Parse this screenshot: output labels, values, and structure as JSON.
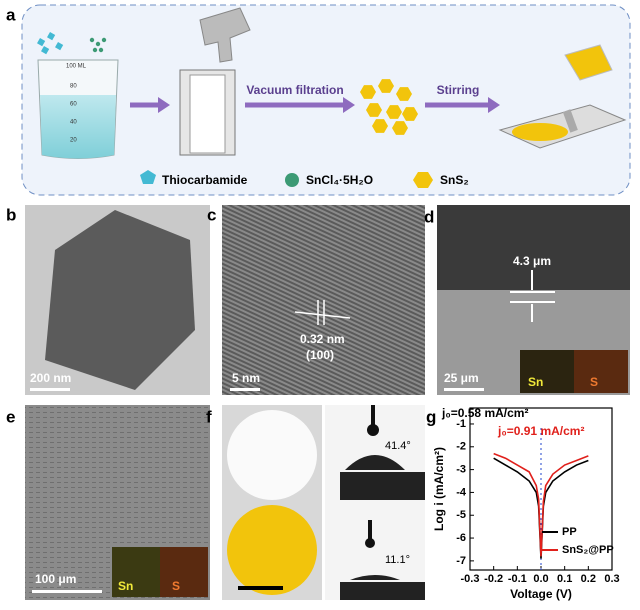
{
  "panel_a": {
    "label": "a",
    "beaker_marks": [
      "100 ML",
      "80",
      "60",
      "40",
      "20"
    ],
    "step1": "Vacuum filtration",
    "step2": "Stirring",
    "legend": [
      "Thiocarbamide",
      "SnCl₄·5H₂O",
      "SnS₂"
    ]
  },
  "panel_b": {
    "label": "b",
    "scale": "200 nm"
  },
  "panel_c": {
    "label": "c",
    "spacing": "0.32 nm",
    "plane": "(100)",
    "scale": "5 nm"
  },
  "panel_d": {
    "label": "d",
    "thickness": "4.3 μm",
    "scale": "25 μm",
    "elements": [
      "Sn",
      "S"
    ]
  },
  "panel_e": {
    "label": "e",
    "scale": "100 μm",
    "elements": [
      "Sn",
      "S"
    ]
  },
  "panel_f": {
    "label": "f",
    "angles": [
      "41.4°",
      "11.1°"
    ]
  },
  "chart_data": {
    "type": "line",
    "label": "g",
    "xlabel": "Voltage (V)",
    "ylabel": "Log i (mA/cm²)",
    "annotations": [
      "j₀=0.58 mA/cm²",
      "j₀=0.91 mA/cm²"
    ],
    "x": [
      -0.2,
      -0.15,
      -0.1,
      -0.05,
      -0.02,
      -0.01,
      0,
      0.01,
      0.02,
      0.05,
      0.1,
      0.15,
      0.2
    ],
    "series": [
      {
        "name": "PP",
        "color": "#000000",
        "values": [
          -2.5,
          -2.8,
          -3.1,
          -3.5,
          -4.0,
          -4.6,
          -6.9,
          -4.6,
          -4.0,
          -3.5,
          -3.1,
          -2.8,
          -2.6
        ]
      },
      {
        "name": "SnS₂@PP",
        "color": "#e0201b",
        "values": [
          -2.3,
          -2.5,
          -2.8,
          -3.1,
          -3.7,
          -4.3,
          -6.8,
          -4.4,
          -3.7,
          -3.2,
          -2.8,
          -2.6,
          -2.4
        ]
      }
    ],
    "xlim": [
      -0.3,
      0.3
    ],
    "ylim": [
      -7.4,
      -0.3
    ],
    "xticks": [
      -0.3,
      -0.2,
      -0.1,
      {
        "value": 0,
        "label": "0.0"
      },
      0.1,
      0.2,
      0.3
    ],
    "yticks": [
      -1,
      -2,
      -3,
      -4,
      -5,
      -6,
      -7
    ],
    "legend": "lower right"
  }
}
